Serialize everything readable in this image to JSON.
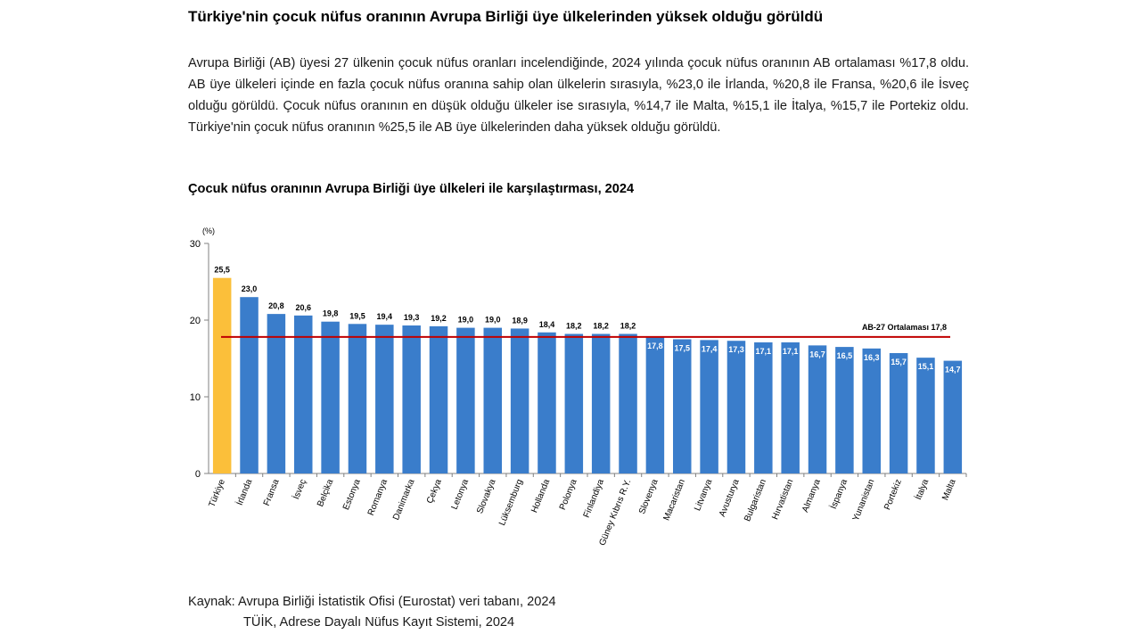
{
  "headline": "Türkiye'nin çocuk nüfus oranının Avrupa Birliği üye ülkelerinden yüksek olduğu görüldü",
  "paragraph": "Avrupa Birliği (AB) üyesi 27 ülkenin çocuk nüfus oranları incelendiğinde, 2024 yılında çocuk nüfus oranının AB ortalaması %17,8 oldu. AB üye ülkeleri içinde en fazla çocuk nüfus oranına sahip olan ülkelerin sırasıyla, %23,0 ile İrlanda, %20,8 ile Fransa, %20,6 ile İsveç olduğu görüldü. Çocuk nüfus oranının en düşük olduğu ülkeler ise sırasıyla, %14,7 ile Malta, %15,1 ile İtalya, %15,7 ile Portekiz oldu. Türkiye'nin çocuk nüfus oranının %25,5 ile AB üye ülkelerinden daha yüksek olduğu görüldü.",
  "source": {
    "line1": "Kaynak: Avrupa Birliği İstatistik Ofisi (Eurostat) veri tabanı, 2024",
    "line2": "TÜİK, Adrese Dayalı Nüfus Kayıt Sistemi, 2024"
  },
  "colors": {
    "highlight": "#FBBF3A",
    "bar": "#3A7DCB",
    "average_line": "#C00000",
    "axis": "#808080"
  },
  "chart_data": {
    "type": "bar",
    "title": "Çocuk nüfus oranının Avrupa Birliği üye ülkeleri ile karşılaştırması, 2024",
    "ylabel": "(%)",
    "ylim": [
      0,
      30
    ],
    "yticks": [
      0,
      10,
      20,
      30
    ],
    "grid": false,
    "categories": [
      "Türkiye",
      "İrlanda",
      "Fransa",
      "İsveç",
      "Belçika",
      "Estonya",
      "Romanya",
      "Danimarka",
      "Çekya",
      "Letonya",
      "Slovakya",
      "Lüksemburg",
      "Hollanda",
      "Polonya",
      "Finlandiya",
      "Güney Kıbrıs R.Y.",
      "Slovenya",
      "Macaristan",
      "Litvanya",
      "Avusturya",
      "Bulgaristan",
      "Hırvatistan",
      "Almanya",
      "İspanya",
      "Yunanistan",
      "Portekiz",
      "İtalya",
      "Malta"
    ],
    "values": [
      25.5,
      23.0,
      20.8,
      20.6,
      19.8,
      19.5,
      19.4,
      19.3,
      19.2,
      19.0,
      19.0,
      18.9,
      18.4,
      18.2,
      18.2,
      18.2,
      17.8,
      17.5,
      17.4,
      17.3,
      17.1,
      17.1,
      16.7,
      16.5,
      16.3,
      15.7,
      15.1,
      14.7
    ],
    "value_labels": [
      "25,5",
      "23,0",
      "20,8",
      "20,6",
      "19,8",
      "19,5",
      "19,4",
      "19,3",
      "19,2",
      "19,0",
      "19,0",
      "18,9",
      "18,4",
      "18,2",
      "18,2",
      "18,2",
      "17,8",
      "17,5",
      "17,4",
      "17,3",
      "17,1",
      "17,1",
      "16,7",
      "16,5",
      "16,3",
      "15,7",
      "15,1",
      "14,7"
    ],
    "highlight_category": "Türkiye",
    "average": {
      "label": "AB-27 Ortalaması",
      "value": 17.8,
      "value_label": "17,8"
    }
  }
}
